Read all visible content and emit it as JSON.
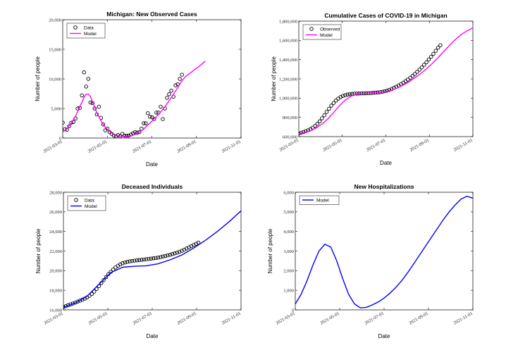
{
  "colors": {
    "model_magenta": "#ff00ff",
    "model_blue": "#0000ff",
    "data_marker": "#000000"
  },
  "x_tick_labels": [
    "2021-03-01",
    "2021-05-01",
    "2021-07-01",
    "2021-09-01",
    "2021-11-01"
  ],
  "chart_data": [
    {
      "id": "new-cases",
      "type": "line",
      "title": "Michigan: New Observed Cases",
      "xlabel": "Date",
      "ylabel": "Number of people",
      "ylim": [
        0,
        20000
      ],
      "yticks": [
        0,
        5000,
        10000,
        15000,
        20000
      ],
      "ytick_labels": [
        "0",
        "5,000",
        "10,000",
        "15,000",
        "20,000"
      ],
      "grid": false,
      "legend_position": "top-left",
      "series": [
        {
          "name": "Data",
          "kind": "markers",
          "x": [
            0,
            1,
            2,
            3,
            4,
            5,
            6,
            7,
            8,
            9,
            10,
            11,
            12,
            13,
            14,
            15,
            16,
            17,
            18,
            19,
            20,
            21,
            22,
            23,
            24,
            25,
            26,
            27,
            28,
            29,
            30,
            31,
            32,
            33,
            34,
            35,
            36,
            37,
            38,
            39,
            40,
            41,
            42,
            43,
            44,
            45,
            46,
            47,
            48,
            49,
            50,
            51,
            52,
            53,
            54,
            55,
            56,
            57,
            58,
            59,
            60,
            61,
            62,
            63,
            64,
            65,
            66,
            67
          ],
          "values": [
            2600,
            1500,
            1400,
            2000,
            2600,
            2700,
            3300,
            5000,
            5100,
            7200,
            11100,
            8700,
            10000,
            6000,
            5900,
            5000,
            4000,
            5300,
            3400,
            2300,
            1300,
            1600,
            1000,
            700,
            400,
            300,
            500,
            300,
            700,
            400,
            400,
            400,
            600,
            800,
            1000,
            900,
            1000,
            1600,
            2500,
            2500,
            4200,
            3600,
            3500,
            3200,
            4300,
            4300,
            5300,
            3200,
            5000,
            6800,
            7400,
            8000,
            7000,
            8900,
            9100,
            10000,
            10700,
            null,
            null,
            null,
            null,
            null,
            null,
            null,
            null,
            null,
            null,
            null
          ]
        },
        {
          "name": "Model",
          "kind": "line",
          "x": [
            0,
            2,
            4,
            6,
            8,
            10,
            11,
            12,
            13,
            14,
            16,
            18,
            20,
            22,
            24,
            26,
            28,
            30,
            32,
            34,
            36,
            38,
            40,
            42,
            44,
            46,
            48,
            50,
            52,
            54,
            56,
            58,
            60,
            62,
            64,
            66,
            67
          ],
          "values": [
            1000,
            1600,
            2500,
            3700,
            5200,
            6900,
            7400,
            7400,
            7000,
            6100,
            4300,
            2900,
            1800,
            1100,
            600,
            350,
            250,
            250,
            350,
            600,
            1000,
            1500,
            2200,
            2900,
            3600,
            4400,
            5300,
            6300,
            7400,
            8500,
            9700,
            10500,
            11000,
            11600,
            12100,
            12700,
            13000
          ]
        }
      ]
    },
    {
      "id": "cumulative-cases",
      "type": "line",
      "title": "Cumulative Cases of COVID-19 in Michigan",
      "xlabel": "Date",
      "ylabel": "Number of people",
      "ylim": [
        600000,
        1800000
      ],
      "yticks": [
        600000,
        800000,
        1000000,
        1200000,
        1400000,
        1600000,
        1800000
      ],
      "ytick_labels": [
        "600,000",
        "800,000",
        "1,000,000",
        "1,200,000",
        "1,400,000",
        "1,600,000",
        "1,800,000"
      ],
      "grid": false,
      "legend_position": "top-left",
      "series": [
        {
          "name": "Observed",
          "kind": "markers",
          "x": [
            0,
            2,
            4,
            6,
            8,
            10,
            12,
            14,
            16,
            18,
            20,
            22,
            24,
            26,
            28,
            30,
            32,
            34,
            36,
            38,
            40,
            42,
            44,
            46,
            48,
            50,
            52,
            54,
            56,
            58,
            60,
            62,
            64,
            66,
            68,
            70,
            72,
            74,
            76,
            78,
            80,
            82,
            84,
            86,
            88,
            90,
            92,
            94,
            96,
            98,
            100,
            102,
            104,
            106,
            108,
            110,
            112,
            114,
            116,
            118,
            120,
            122,
            124,
            126,
            128,
            130,
            132,
            134,
            136,
            138,
            140,
            142
          ],
          "values": [
            632000,
            640000,
            648000,
            657000,
            666000,
            678000,
            692000,
            711000,
            733000,
            759000,
            790000,
            822000,
            856000,
            890000,
            922000,
            950000,
            975000,
            995000,
            1011000,
            1023000,
            1031000,
            1037000,
            1041000,
            1044000,
            1046000,
            1047000,
            1048000,
            1049000,
            1050000,
            1051000,
            1052000,
            1053000,
            1055000,
            1057000,
            1059000,
            1062000,
            1066000,
            1071000,
            1078000,
            1086000,
            1095000,
            1106000,
            1118000,
            1131000,
            1145000,
            1160000,
            1176000,
            1193000,
            1211000,
            1231000,
            1251000,
            1273000,
            1296000,
            1320000,
            1346000,
            1373000,
            1401000,
            1430000,
            1460000,
            1492000,
            1524000,
            1550000,
            null,
            null,
            null,
            null,
            null,
            null,
            null,
            null,
            null,
            null
          ]
        },
        {
          "name": "Model",
          "kind": "line",
          "x": [
            0,
            5,
            10,
            15,
            20,
            25,
            30,
            35,
            40,
            45,
            50,
            55,
            60,
            65,
            70,
            75,
            80,
            85,
            90,
            95,
            100,
            105,
            110,
            115,
            120,
            125,
            130,
            135,
            140,
            145,
            150
          ],
          "values": [
            630000,
            642000,
            660000,
            690000,
            730000,
            785000,
            850000,
            920000,
            980000,
            1020000,
            1040000,
            1048000,
            1052000,
            1056000,
            1060000,
            1068000,
            1082000,
            1105000,
            1135000,
            1170000,
            1210000,
            1255000,
            1305000,
            1360000,
            1420000,
            1485000,
            1550000,
            1610000,
            1660000,
            1700000,
            1730000
          ]
        }
      ]
    },
    {
      "id": "deceased",
      "type": "line",
      "title": "Deceased Individuals",
      "xlabel": "Date",
      "ylabel": "Number of people",
      "ylim": [
        16000,
        28000
      ],
      "yticks": [
        16000,
        18000,
        20000,
        22000,
        24000,
        26000,
        28000
      ],
      "ytick_labels": [
        "16,000",
        "18,000",
        "20,000",
        "22,000",
        "24,000",
        "26,000",
        "28,000"
      ],
      "grid": false,
      "legend_position": "top-left",
      "series": [
        {
          "name": "Data",
          "kind": "markers",
          "x": [
            0,
            2,
            4,
            6,
            8,
            10,
            12,
            14,
            16,
            18,
            20,
            22,
            24,
            26,
            28,
            30,
            32,
            34,
            36,
            38,
            40,
            42,
            44,
            46,
            48,
            50,
            52,
            54,
            56,
            58,
            60,
            62,
            64,
            66,
            68,
            70,
            72,
            74,
            76,
            78,
            80,
            82,
            84,
            86,
            88,
            90,
            92,
            94,
            96,
            98,
            100,
            102,
            104,
            106,
            108,
            110,
            112,
            114,
            116,
            118,
            120,
            122,
            124,
            126,
            128,
            130,
            132,
            134,
            136,
            138,
            140,
            142,
            144,
            146,
            148,
            150
          ],
          "values": [
            16300,
            16380,
            16480,
            16560,
            16650,
            16740,
            16840,
            16940,
            17040,
            17150,
            17270,
            17430,
            17620,
            17870,
            18140,
            18430,
            18730,
            19040,
            19340,
            19640,
            19880,
            20120,
            20330,
            20500,
            20650,
            20760,
            20840,
            20900,
            20950,
            20990,
            21020,
            21050,
            21080,
            21110,
            21140,
            21170,
            21200,
            21230,
            21260,
            21290,
            21330,
            21380,
            21440,
            21500,
            21560,
            21620,
            21690,
            21760,
            21840,
            21930,
            22030,
            22140,
            22260,
            22380,
            22500,
            22620,
            22740,
            22860,
            null,
            null,
            null,
            null,
            null,
            null,
            null,
            null,
            null,
            null,
            null,
            null,
            null,
            null,
            null,
            null,
            null,
            null
          ]
        },
        {
          "name": "Model",
          "kind": "line",
          "x": [
            0,
            10,
            20,
            30,
            40,
            50,
            60,
            70,
            80,
            90,
            100,
            110,
            120,
            130,
            140,
            150
          ],
          "values": [
            16250,
            16700,
            17400,
            18600,
            19800,
            20350,
            20450,
            20500,
            20700,
            21100,
            21600,
            22300,
            23100,
            24000,
            25000,
            26100
          ]
        }
      ]
    },
    {
      "id": "hospitalizations",
      "type": "line",
      "title": "New Hospitalizations",
      "xlabel": "Date",
      "ylabel": "Number of people",
      "ylim": [
        0,
        6000
      ],
      "yticks": [
        0,
        1000,
        2000,
        3000,
        4000,
        5000,
        6000
      ],
      "ytick_labels": [
        "0",
        "1,000",
        "2,000",
        "3,000",
        "4,000",
        "5,000",
        "6,000"
      ],
      "grid": false,
      "legend_position": "top-left",
      "series": [
        {
          "name": "Model",
          "kind": "line",
          "x": [
            0,
            5,
            10,
            15,
            20,
            25,
            30,
            35,
            40,
            45,
            50,
            55,
            60,
            65,
            70,
            75,
            80,
            85,
            90,
            95,
            100,
            105,
            110,
            115,
            120,
            125,
            130,
            135,
            140,
            145,
            150
          ],
          "values": [
            300,
            800,
            1500,
            2300,
            3000,
            3350,
            3200,
            2500,
            1600,
            800,
            300,
            100,
            130,
            250,
            400,
            600,
            850,
            1150,
            1500,
            1900,
            2350,
            2800,
            3250,
            3700,
            4150,
            4600,
            5000,
            5350,
            5650,
            5800,
            5700
          ]
        }
      ]
    }
  ]
}
